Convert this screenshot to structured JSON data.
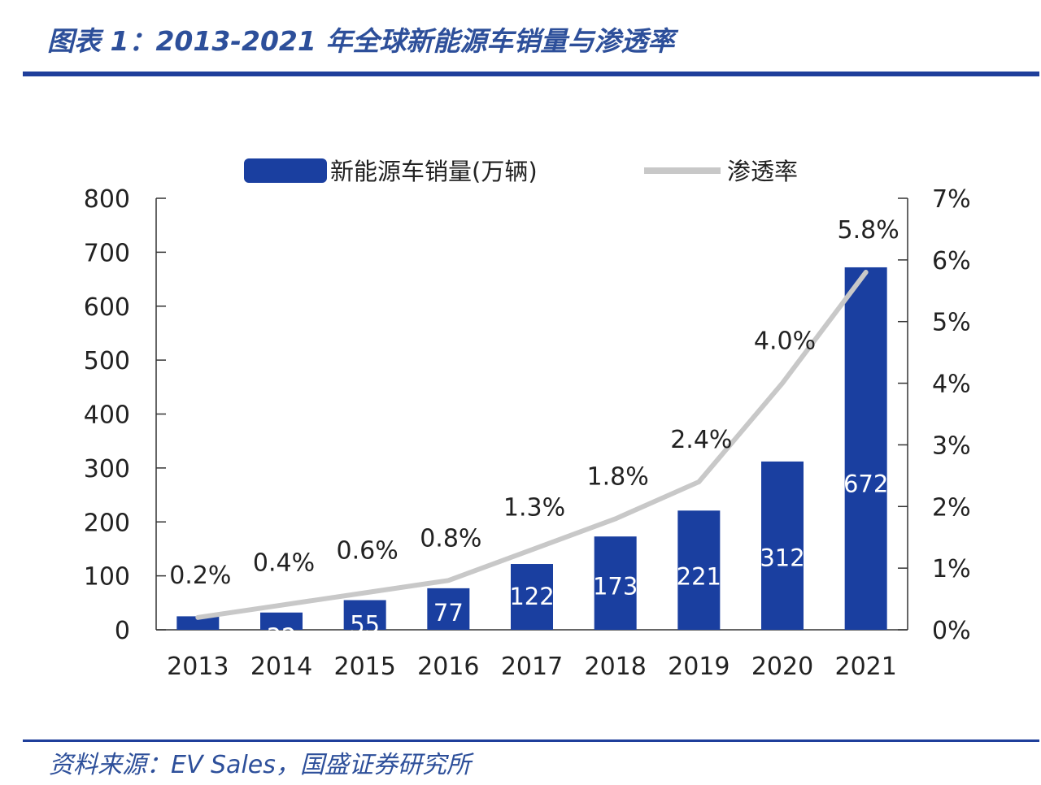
{
  "header": {
    "title": "图表 1：2013-2021 年全球新能源车销量与渗透率"
  },
  "footer": {
    "source": "资料来源：EV Sales，国盛证券研究所"
  },
  "colors": {
    "bar": "#1a3fa0",
    "line": "#c8c8c8",
    "brand": "#2d4f9a",
    "axis": "#333333"
  },
  "chart_data": {
    "type": "bar",
    "categories": [
      "2013",
      "2014",
      "2015",
      "2016",
      "2017",
      "2018",
      "2019",
      "2020",
      "2021"
    ],
    "series": [
      {
        "name": "新能源车销量(万辆)",
        "type": "bar",
        "axis": "left",
        "values": [
          25,
          32,
          55,
          77,
          122,
          173,
          221,
          312,
          672
        ],
        "labels": [
          "",
          "32",
          "55",
          "77",
          "122",
          "173",
          "221",
          "312",
          "672"
        ]
      },
      {
        "name": "渗透率",
        "type": "line",
        "axis": "right",
        "values": [
          0.2,
          0.4,
          0.6,
          0.8,
          1.3,
          1.8,
          2.4,
          4.0,
          5.8
        ],
        "labels": [
          "0.2%",
          "0.4%",
          "0.6%",
          "0.8%",
          "1.3%",
          "1.8%",
          "2.4%",
          "4.0%",
          "5.8%"
        ]
      }
    ],
    "ylim_left": [
      0,
      800
    ],
    "ylim_right": [
      0,
      7
    ],
    "yticks_left": [
      "0",
      "100",
      "200",
      "300",
      "400",
      "500",
      "600",
      "700",
      "800"
    ],
    "yticks_right": [
      "0%",
      "1%",
      "2%",
      "3%",
      "4%",
      "5%",
      "6%",
      "7%"
    ],
    "legend": "top",
    "grid": false
  }
}
